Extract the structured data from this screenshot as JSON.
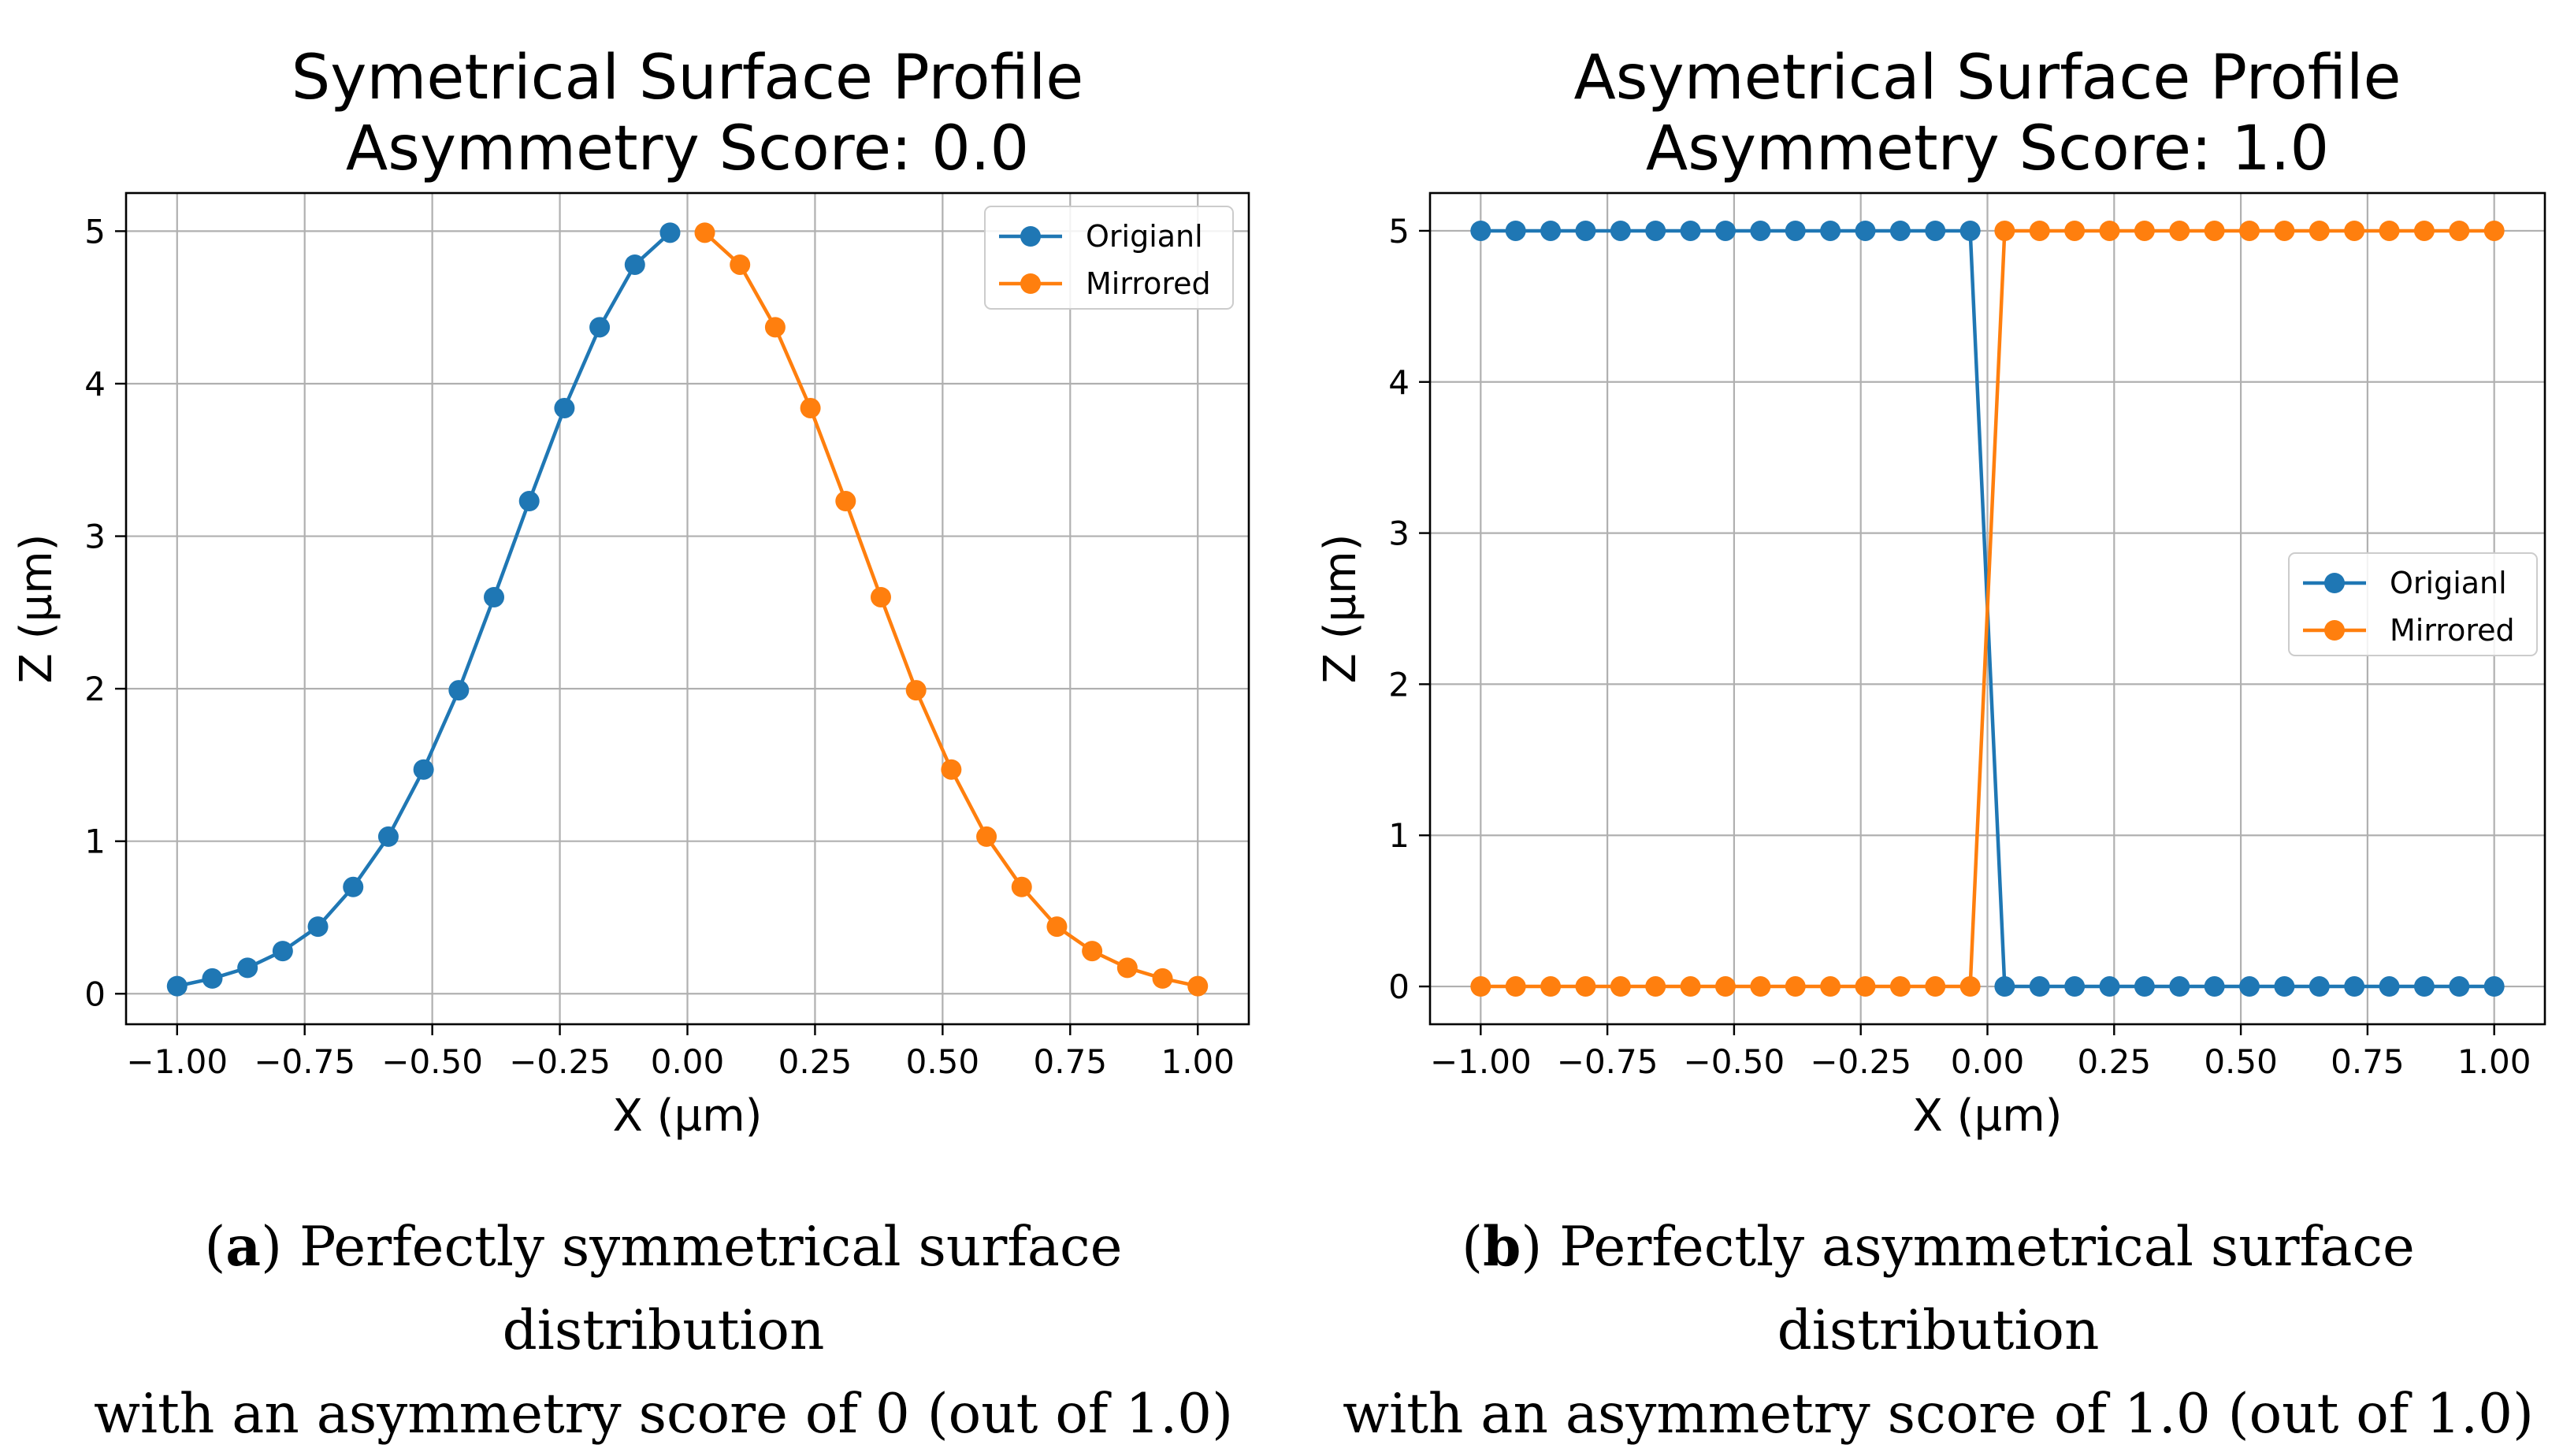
{
  "chart_data": [
    {
      "type": "line",
      "title": "Symetrical Surface Profile",
      "subtitle": "Asymmetry Score: 0.0",
      "xlabel": "X (µm)",
      "ylabel": "Z (µm)",
      "xlim": [
        -1.1,
        1.1
      ],
      "ylim": [
        -0.2,
        5.25
      ],
      "xticks": [
        -1.0,
        -0.75,
        -0.5,
        -0.25,
        0.0,
        0.25,
        0.5,
        0.75,
        1.0
      ],
      "xtick_labels": [
        "−1.00",
        "−0.75",
        "−0.50",
        "−0.25",
        "0.00",
        "0.25",
        "0.50",
        "0.75",
        "1.00"
      ],
      "yticks": [
        0,
        1,
        2,
        3,
        4,
        5
      ],
      "ytick_labels": [
        "0",
        "1",
        "2",
        "3",
        "4",
        "5"
      ],
      "grid": true,
      "legend_position": "top-right",
      "series": [
        {
          "name": "Origianl",
          "color": "#1f77b4",
          "x": [
            -1.0,
            -0.931,
            -0.862,
            -0.793,
            -0.724,
            -0.655,
            -0.586,
            -0.517,
            -0.448,
            -0.379,
            -0.31,
            -0.241,
            -0.172,
            -0.103,
            -0.034
          ],
          "y": [
            0.05,
            0.1,
            0.17,
            0.28,
            0.44,
            0.7,
            1.03,
            1.47,
            1.99,
            2.6,
            3.23,
            3.84,
            4.37,
            4.78,
            4.99
          ]
        },
        {
          "name": "Mirrored",
          "color": "#ff7f0e",
          "x": [
            0.034,
            0.103,
            0.172,
            0.241,
            0.31,
            0.379,
            0.448,
            0.517,
            0.586,
            0.655,
            0.724,
            0.793,
            0.862,
            0.931,
            1.0
          ],
          "y": [
            4.99,
            4.78,
            4.37,
            3.84,
            3.23,
            2.6,
            1.99,
            1.47,
            1.03,
            0.7,
            0.44,
            0.28,
            0.17,
            0.1,
            0.05
          ]
        }
      ]
    },
    {
      "type": "line",
      "title": "Asymetrical Surface Profile",
      "subtitle": "Asymmetry Score: 1.0",
      "xlabel": "X (µm)",
      "ylabel": "Z (µm)",
      "xlim": [
        -1.1,
        1.1
      ],
      "ylim": [
        -0.25,
        5.25
      ],
      "xticks": [
        -1.0,
        -0.75,
        -0.5,
        -0.25,
        0.0,
        0.25,
        0.5,
        0.75,
        1.0
      ],
      "xtick_labels": [
        "−1.00",
        "−0.75",
        "−0.50",
        "−0.25",
        "0.00",
        "0.25",
        "0.50",
        "0.75",
        "1.00"
      ],
      "yticks": [
        0,
        1,
        2,
        3,
        4,
        5
      ],
      "ytick_labels": [
        "0",
        "1",
        "2",
        "3",
        "4",
        "5"
      ],
      "grid": true,
      "legend_position": "center-right",
      "series": [
        {
          "name": "Origianl",
          "color": "#1f77b4",
          "x": [
            -1.0,
            -0.931,
            -0.862,
            -0.793,
            -0.724,
            -0.655,
            -0.586,
            -0.517,
            -0.448,
            -0.379,
            -0.31,
            -0.241,
            -0.172,
            -0.103,
            -0.034,
            0.034,
            0.103,
            0.172,
            0.241,
            0.31,
            0.379,
            0.448,
            0.517,
            0.586,
            0.655,
            0.724,
            0.793,
            0.862,
            0.931,
            1.0
          ],
          "y": [
            5,
            5,
            5,
            5,
            5,
            5,
            5,
            5,
            5,
            5,
            5,
            5,
            5,
            5,
            5,
            0,
            0,
            0,
            0,
            0,
            0,
            0,
            0,
            0,
            0,
            0,
            0,
            0,
            0,
            0
          ]
        },
        {
          "name": "Mirrored",
          "color": "#ff7f0e",
          "x": [
            -1.0,
            -0.931,
            -0.862,
            -0.793,
            -0.724,
            -0.655,
            -0.586,
            -0.517,
            -0.448,
            -0.379,
            -0.31,
            -0.241,
            -0.172,
            -0.103,
            -0.034,
            0.034,
            0.103,
            0.172,
            0.241,
            0.31,
            0.379,
            0.448,
            0.517,
            0.586,
            0.655,
            0.724,
            0.793,
            0.862,
            0.931,
            1.0
          ],
          "y": [
            0,
            0,
            0,
            0,
            0,
            0,
            0,
            0,
            0,
            0,
            0,
            0,
            0,
            0,
            0,
            5,
            5,
            5,
            5,
            5,
            5,
            5,
            5,
            5,
            5,
            5,
            5,
            5,
            5,
            5
          ]
        }
      ]
    }
  ],
  "captions": [
    {
      "label": "a",
      "line1": " Perfectly symmetrical surface distribution",
      "line2": "with an asymmetry score of 0 (out of 1.0)"
    },
    {
      "label": "b",
      "line1": " Perfectly asymmetrical surface distribution",
      "line2": "with an asymmetry score of 1.0 (out of 1.0)"
    }
  ]
}
